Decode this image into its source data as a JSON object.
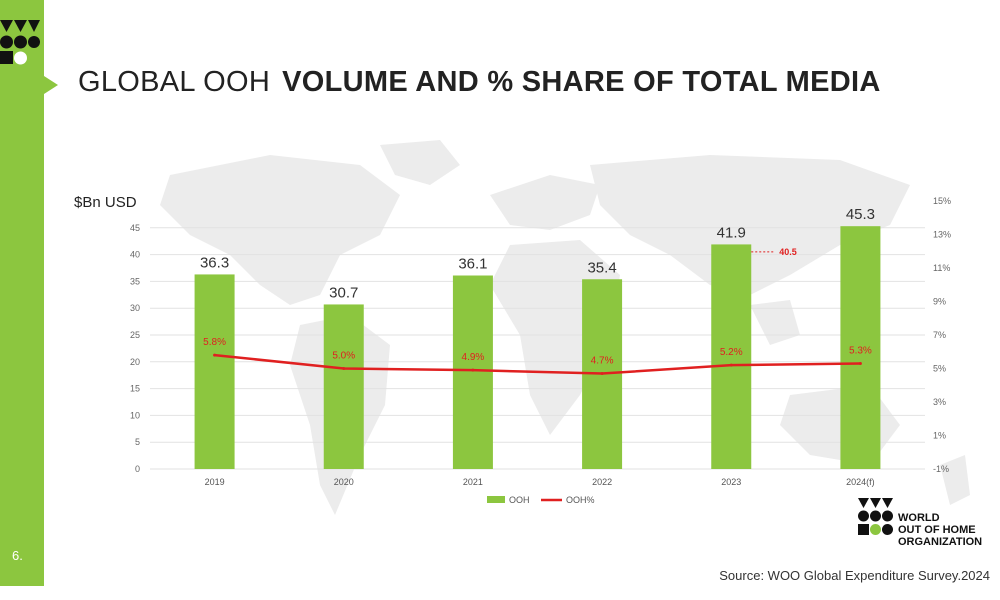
{
  "slide": {
    "title_light": "GLOBAL OOH",
    "title_bold": "VOLUME AND % SHARE OF TOTAL MEDIA",
    "page_number": "6.",
    "source": "Source: WOO Global Expenditure Survey.2024",
    "org_lines": [
      "WORLD",
      "OUT OF HOME",
      "ORGANIZATION"
    ]
  },
  "colors": {
    "accent_green": "#8cc63f",
    "line_red": "#e02020"
  },
  "chart_data": {
    "type": "bar",
    "ylabel": "$Bn USD",
    "categories": [
      "2019",
      "2020",
      "2021",
      "2022",
      "2023",
      "2024(f)"
    ],
    "series": [
      {
        "name": "OOH",
        "type": "bar",
        "values": [
          36.3,
          30.7,
          36.1,
          35.4,
          41.9,
          45.3
        ],
        "labels": [
          "36.3",
          "30.7",
          "36.1",
          "35.4",
          "41.9",
          "45.3"
        ]
      },
      {
        "name": "OOH%",
        "type": "line",
        "axis": "right",
        "values": [
          5.8,
          5.0,
          4.9,
          4.7,
          5.2,
          5.3
        ],
        "labels": [
          "5.8%",
          "5.0%",
          "4.9%",
          "4.7%",
          "5.2%",
          "5.3%"
        ]
      }
    ],
    "annotation": {
      "category": "2023",
      "value": 40.5,
      "label": "40.5"
    },
    "ylim": [
      0,
      50
    ],
    "yticks": [
      "0",
      "5",
      "10",
      "15",
      "20",
      "25",
      "30",
      "35",
      "40",
      "45"
    ],
    "y2lim": [
      -1,
      15
    ],
    "y2ticks": [
      "-1%",
      "1%",
      "3%",
      "5%",
      "7%",
      "9%",
      "11%",
      "13%",
      "15%"
    ],
    "grid": true,
    "legend": "bottom-center"
  }
}
